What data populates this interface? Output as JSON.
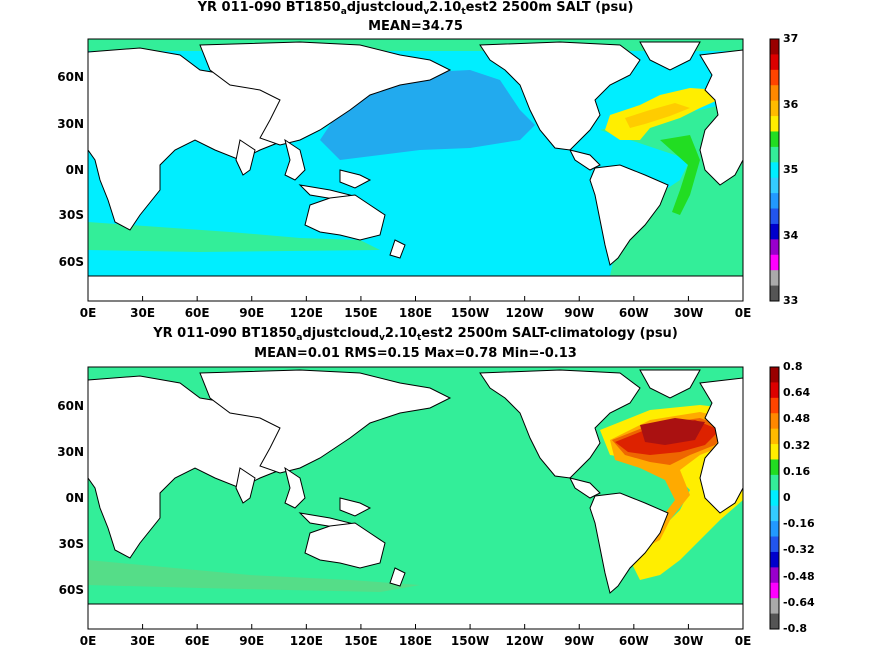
{
  "panel1": {
    "title_pre": "YR 011-090 BT1850",
    "title_s1": "a",
    "title_mid1": "djustcloud",
    "title_s2": "v",
    "title_mid2": "2.10",
    "title_s3": "t",
    "title_post": "est2 2500m SALT (psu)",
    "stats": "MEAN=34.75",
    "colorbar_labels": [
      "37",
      "36",
      "35",
      "34",
      "33"
    ]
  },
  "panel2": {
    "title_pre": "YR 011-090 BT1850",
    "title_s1": "a",
    "title_mid1": "djustcloud",
    "title_s2": "v",
    "title_mid2": "2.10",
    "title_s3": "t",
    "title_post": "est2 2500m SALT-climatology (psu)",
    "stats": "MEAN=0.01   RMS=0.15   Max=0.78   Min=-0.13",
    "colorbar_labels": [
      "0.8",
      "0.64",
      "0.48",
      "0.32",
      "0.16",
      "0",
      "-0.16",
      "-0.32",
      "-0.48",
      "-0.64",
      "-0.8"
    ]
  },
  "axes": {
    "x_ticks": [
      "0E",
      "30E",
      "60E",
      "90E",
      "120E",
      "150E",
      "180E",
      "150W",
      "120W",
      "90W",
      "60W",
      "30W",
      "0E"
    ],
    "y_ticks": [
      "60N",
      "30N",
      "0N",
      "30S",
      "60S"
    ]
  },
  "colors": {
    "land": "#ffffff",
    "coast": "#000000",
    "p1_ocean_main": "#00eeff",
    "p1_north_pacific": "#22aaee",
    "p1_southern": "#33ddaa",
    "p1_atlantic": "#33ee99",
    "p1_atl_salty": "#ffee00",
    "p1_atl_salty2": "#ffcc00",
    "p1_arctic": "#22ee88",
    "p2_ocean_main": "#33ee99",
    "p2_southern": "#55dd88",
    "p2_atl_1": "#ffee00",
    "p2_atl_2": "#ffaa00",
    "p2_atl_3": "#ee6600",
    "p2_atl_4": "#dd2200",
    "p2_atl_5": "#aa1111"
  },
  "colorbar1": [
    "#990000",
    "#dd0000",
    "#ff4400",
    "#ff8800",
    "#ffbb00",
    "#ffee00",
    "#22dd22",
    "#33ee99",
    "#00eeff",
    "#33ccff",
    "#2299ff",
    "#2255ee",
    "#0000cc",
    "#9900cc",
    "#ff00ff",
    "#aaaaaa",
    "#555555"
  ],
  "colorbar2": [
    "#990000",
    "#dd0000",
    "#ff4400",
    "#ff8800",
    "#ffbb00",
    "#ffee00",
    "#22dd22",
    "#33ee99",
    "#00eeff",
    "#33ccff",
    "#2299ff",
    "#2255ee",
    "#0000cc",
    "#9900cc",
    "#ff00ff",
    "#aaaaaa",
    "#555555"
  ]
}
